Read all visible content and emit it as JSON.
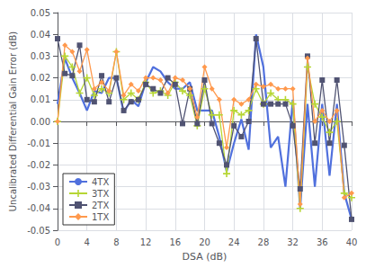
{
  "chart_data": {
    "type": "line",
    "xlabel": "DSA (dB)",
    "ylabel": "Uncalibrated Differential Gain Error (dB)",
    "x": [
      0,
      1,
      2,
      3,
      4,
      5,
      6,
      7,
      8,
      9,
      10,
      11,
      12,
      13,
      14,
      15,
      16,
      17,
      18,
      19,
      20,
      21,
      22,
      23,
      24,
      25,
      26,
      27,
      28,
      29,
      30,
      31,
      32,
      33,
      34,
      35,
      36,
      37,
      38,
      39,
      40
    ],
    "series": [
      {
        "name": "4TX",
        "marker": "none",
        "values": [
          0.008,
          0.029,
          0.02,
          0.013,
          0.005,
          0.014,
          0.013,
          0.02,
          0.02,
          0.004,
          0.01,
          0.007,
          0.018,
          0.025,
          0.023,
          0.018,
          0.015,
          0.015,
          0.018,
          0.005,
          0.005,
          0.005,
          -0.007,
          -0.023,
          -0.01,
          0.001,
          -0.013,
          0.04,
          0.025,
          -0.012,
          -0.007,
          -0.03,
          0.01,
          -0.04,
          0.008,
          -0.03,
          0.008,
          -0.025,
          0.008,
          -0.033,
          -0.045
        ]
      },
      {
        "name": "3TX",
        "marker": "plus",
        "values": [
          0.0,
          0.03,
          0.025,
          0.013,
          0.02,
          0.012,
          0.015,
          0.013,
          0.032,
          0.01,
          0.013,
          0.01,
          0.018,
          0.013,
          0.014,
          0.012,
          0.018,
          0.014,
          0.012,
          -0.002,
          0.015,
          0.003,
          0.003,
          -0.024,
          0.005,
          0.003,
          0.005,
          0.015,
          0.008,
          0.013,
          0.01,
          0.01,
          0.008,
          -0.04,
          0.025,
          0.008,
          0.002,
          -0.005,
          0.0,
          -0.033,
          -0.035
        ]
      },
      {
        "name": "2TX",
        "marker": "square",
        "values": [
          0.038,
          0.022,
          0.021,
          0.035,
          0.01,
          0.009,
          0.021,
          0.009,
          0.02,
          0.005,
          0.009,
          0.01,
          0.017,
          0.015,
          0.013,
          0.02,
          0.017,
          -0.001,
          0.015,
          -0.001,
          0.019,
          -0.001,
          -0.01,
          -0.02,
          -0.002,
          -0.007,
          0.0,
          0.038,
          0.008,
          0.008,
          0.008,
          0.008,
          -0.002,
          -0.031,
          0.03,
          -0.01,
          0.019,
          -0.01,
          0.019,
          -0.011,
          -0.045
        ]
      },
      {
        "name": "1TX",
        "marker": "diamond",
        "values": [
          0.0,
          0.035,
          0.032,
          0.023,
          0.033,
          0.015,
          0.018,
          0.014,
          0.032,
          0.012,
          0.017,
          0.014,
          0.02,
          0.02,
          0.019,
          0.013,
          0.02,
          0.019,
          0.015,
          0.002,
          0.025,
          0.015,
          0.01,
          -0.012,
          0.01,
          0.008,
          0.01,
          0.017,
          0.016,
          0.017,
          0.015,
          0.015,
          0.015,
          -0.038,
          0.029,
          0.0,
          0.005,
          0.0,
          0.005,
          -0.035,
          -0.033
        ]
      }
    ],
    "xlim": [
      0,
      40
    ],
    "ylim": [
      -0.05,
      0.05
    ],
    "xticks": [
      0,
      4,
      8,
      12,
      16,
      20,
      24,
      28,
      32,
      36,
      40
    ],
    "yticks": [
      -0.05,
      -0.04,
      -0.03,
      -0.02,
      -0.01,
      {
        "value": 0.0,
        "label": "0.00"
      },
      0.01,
      0.02,
      0.03,
      0.04,
      0.05
    ],
    "grid": true,
    "legend": "lower left"
  }
}
